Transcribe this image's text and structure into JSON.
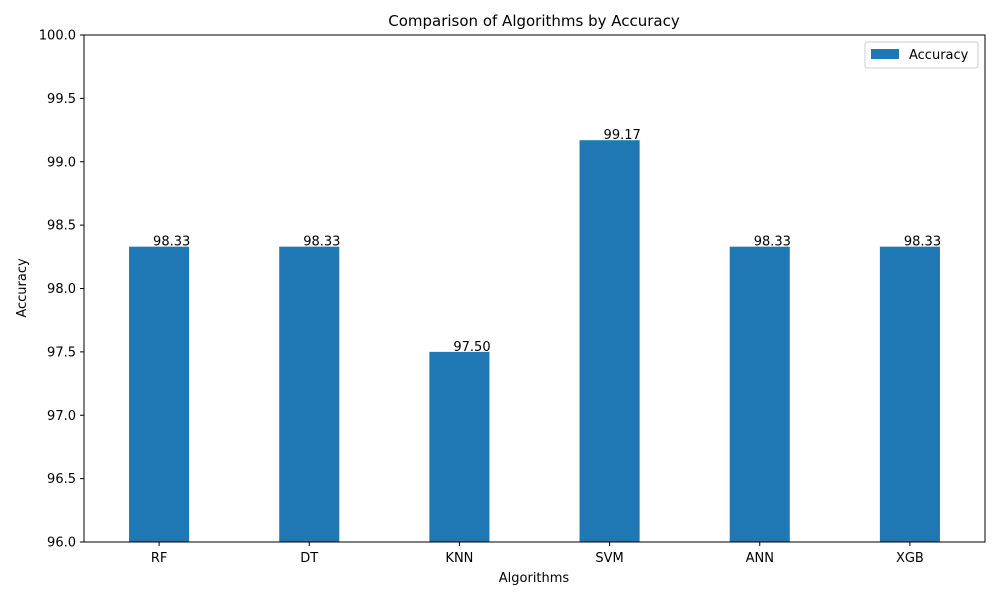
{
  "chart_data": {
    "type": "bar",
    "title": "Comparison of Algorithms by Accuracy",
    "xlabel": "Algorithms",
    "ylabel": "Accuracy",
    "categories": [
      "RF",
      "DT",
      "KNN",
      "SVM",
      "ANN",
      "XGB"
    ],
    "series": [
      {
        "name": "Accuracy",
        "values": [
          98.33,
          98.33,
          97.5,
          99.17,
          98.33,
          98.33
        ]
      }
    ],
    "data_labels": [
      "98.33",
      "98.33",
      "97.50",
      "99.17",
      "98.33",
      "98.33"
    ],
    "ylim": [
      96.0,
      100.0
    ],
    "yticks": [
      96.0,
      96.5,
      97.0,
      97.5,
      98.0,
      98.5,
      99.0,
      99.5,
      100.0
    ],
    "ytick_labels": [
      "96.0",
      "96.5",
      "97.0",
      "97.5",
      "98.0",
      "98.5",
      "99.0",
      "99.5",
      "100.0"
    ],
    "grid": false,
    "legend_position": "top-right",
    "bar_color": "#1f77b4"
  }
}
